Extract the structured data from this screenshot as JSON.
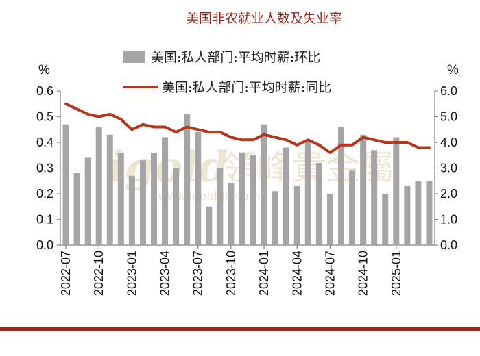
{
  "chart_data": {
    "type": "bar+line",
    "title": "美国非农就业人数及失业率",
    "left_axis": {
      "unit": "%",
      "ylim": [
        0,
        0.6
      ],
      "ticks": [
        "0.0",
        "0.1",
        "0.2",
        "0.3",
        "0.4",
        "0.5",
        "0.6"
      ]
    },
    "right_axis": {
      "unit": "%",
      "ylim": [
        0,
        6
      ],
      "ticks": [
        "0.0",
        "1.0",
        "2.0",
        "3.0",
        "4.0",
        "5.0",
        "6.0"
      ]
    },
    "x_tick_labels": [
      "2022-07",
      "2022-10",
      "2023-01",
      "2023-04",
      "2023-07",
      "2023-10",
      "2024-01",
      "2024-04",
      "2024-07",
      "2024-10",
      "2025-01"
    ],
    "x": [
      "2022-07",
      "2022-08",
      "2022-09",
      "2022-10",
      "2022-11",
      "2022-12",
      "2023-01",
      "2023-02",
      "2023-03",
      "2023-04",
      "2023-05",
      "2023-06",
      "2023-07",
      "2023-08",
      "2023-09",
      "2023-10",
      "2023-11",
      "2023-12",
      "2024-01",
      "2024-02",
      "2024-03",
      "2024-04",
      "2024-05",
      "2024-06",
      "2024-07",
      "2024-08",
      "2024-09",
      "2024-10",
      "2024-11",
      "2024-12",
      "2025-01",
      "2025-02",
      "2025-03",
      "2025-04"
    ],
    "series": [
      {
        "name": "美国:私人部门:平均时薪:环比",
        "kind": "bar",
        "axis": "left",
        "color": "#a5a5a5",
        "values": [
          0.47,
          0.28,
          0.34,
          0.46,
          0.43,
          0.36,
          0.27,
          0.33,
          0.36,
          0.42,
          0.3,
          0.51,
          0.44,
          0.15,
          0.3,
          0.24,
          0.36,
          0.35,
          0.47,
          0.21,
          0.38,
          0.23,
          0.4,
          0.32,
          0.2,
          0.46,
          0.29,
          0.43,
          0.37,
          0.2,
          0.42,
          0.23,
          0.25,
          0.25
        ]
      },
      {
        "name": "美国:私人部门:平均时薪:同比",
        "kind": "line",
        "axis": "right",
        "color": "#b5361b",
        "values": [
          5.5,
          5.3,
          5.1,
          5.0,
          5.1,
          4.9,
          4.5,
          4.7,
          4.6,
          4.6,
          4.4,
          4.6,
          4.5,
          4.4,
          4.4,
          4.2,
          4.1,
          4.1,
          4.3,
          4.2,
          4.1,
          3.9,
          4.1,
          3.9,
          3.6,
          3.9,
          3.9,
          4.2,
          4.1,
          4.0,
          4.0,
          4.0,
          3.8,
          3.8
        ]
      }
    ],
    "watermark": {
      "brand": "igold",
      "cn": "領峰貴金屬",
      "url": "www.igoldhk.com"
    }
  }
}
